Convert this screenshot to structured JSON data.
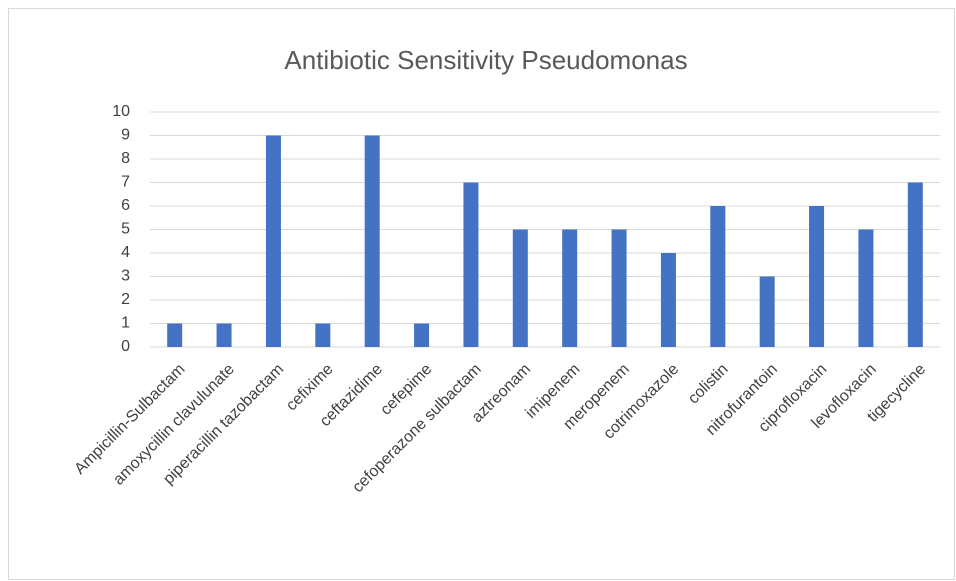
{
  "chart_data": {
    "type": "bar",
    "title": "Antibiotic Sensitivity Pseudomonas",
    "categories": [
      "Ampicillin-Sulbactam",
      "amoxycillin clavulunate",
      "piperacillin tazobactam",
      "cefixime",
      "ceftazidime",
      "cefepime",
      "cefoperazone sulbactam",
      "aztreonam",
      "imipenem",
      "meropenem",
      "cotrimoxazole",
      "colistin",
      "nitrofurantoin",
      "ciprofloxacin",
      "levofloxacin",
      "tigecycline"
    ],
    "values": [
      1,
      1,
      9,
      1,
      9,
      1,
      7,
      5,
      5,
      5,
      4,
      6,
      3,
      6,
      5,
      7
    ],
    "color": "#4472c4",
    "ylim": [
      0,
      10
    ],
    "yticks": [
      0,
      1,
      2,
      3,
      4,
      5,
      6,
      7,
      8,
      9,
      10
    ],
    "grid": true
  }
}
